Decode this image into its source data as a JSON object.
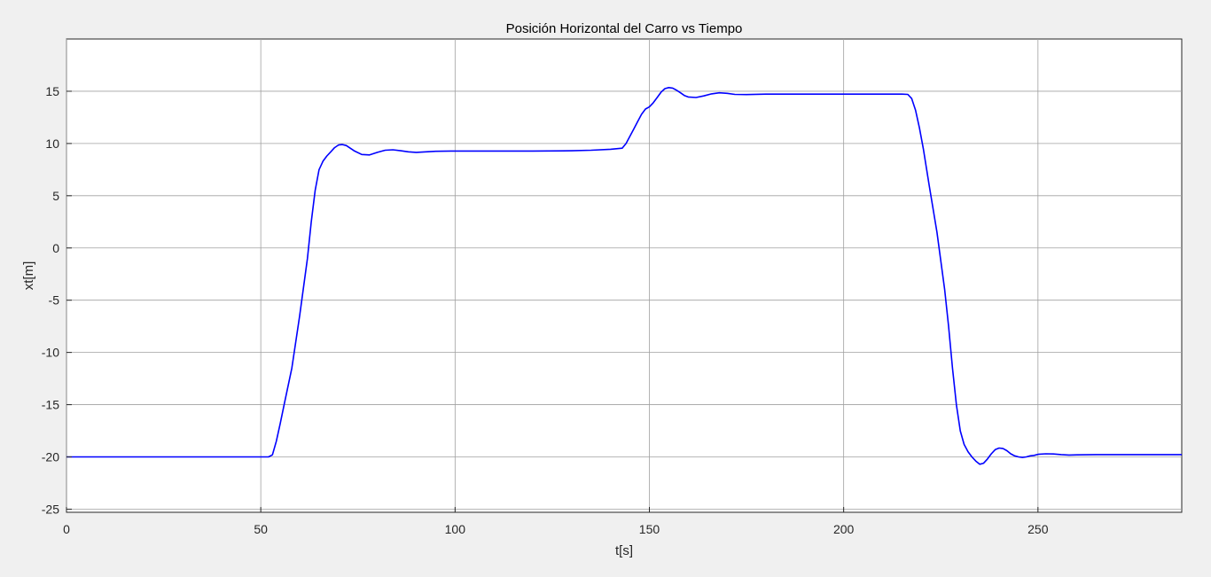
{
  "chart_data": {
    "type": "line",
    "title": "Posición Horizontal del Carro vs Tiempo",
    "xlabel": "t[s]",
    "ylabel": "xt[m]",
    "xlim": [
      0,
      287
    ],
    "ylim": [
      -25.3,
      20
    ],
    "x_ticks": [
      0,
      50,
      100,
      150,
      200,
      250
    ],
    "y_ticks": [
      15,
      10,
      5,
      0,
      -5,
      -10,
      -15,
      -20,
      -25
    ],
    "x_tick_labels": [
      "0",
      "50",
      "100",
      "150",
      "200",
      "250"
    ],
    "y_tick_labels": [
      "15",
      "10",
      "5",
      "0",
      "-5",
      "-10",
      "-15",
      "-20",
      "-25"
    ],
    "grid": true,
    "line_color": "#0000ff",
    "series": [
      {
        "x": [
          0,
          50,
          52,
          53,
          54,
          55,
          56,
          58,
          60,
          62,
          63,
          64,
          65,
          66,
          67,
          68,
          69,
          70,
          71,
          72,
          74,
          76,
          78,
          80,
          82,
          84,
          86,
          88,
          90,
          95,
          100,
          110,
          120,
          130,
          135,
          140,
          143,
          144,
          145,
          146,
          147,
          148,
          149,
          150,
          151,
          152,
          153,
          154,
          155,
          156,
          157,
          158,
          159,
          160,
          162,
          164,
          166,
          168,
          170,
          172,
          175,
          180,
          190,
          200,
          210,
          215,
          216.5,
          217.5,
          218.5,
          219.5,
          220.5,
          222,
          224,
          226,
          227,
          228,
          229,
          230,
          231,
          232,
          233,
          234,
          235,
          236,
          237,
          238,
          239,
          240,
          241,
          242,
          243,
          244,
          245,
          246,
          247,
          248,
          249,
          250,
          252,
          254,
          256,
          258,
          260,
          265,
          270,
          280,
          287
        ],
        "y": [
          -20,
          -20,
          -20,
          -19.8,
          -18.5,
          -16.8,
          -15.0,
          -11.5,
          -6.5,
          -1.0,
          2.5,
          5.5,
          7.5,
          8.3,
          8.8,
          9.2,
          9.6,
          9.85,
          9.9,
          9.8,
          9.3,
          8.95,
          8.9,
          9.15,
          9.35,
          9.4,
          9.3,
          9.2,
          9.15,
          9.25,
          9.28,
          9.28,
          9.28,
          9.3,
          9.35,
          9.45,
          9.55,
          10.0,
          10.7,
          11.4,
          12.1,
          12.8,
          13.3,
          13.5,
          13.9,
          14.4,
          14.9,
          15.25,
          15.35,
          15.3,
          15.1,
          14.85,
          14.6,
          14.45,
          14.4,
          14.55,
          14.75,
          14.85,
          14.8,
          14.7,
          14.68,
          14.72,
          14.72,
          14.72,
          14.72,
          14.72,
          14.7,
          14.3,
          13.2,
          11.5,
          9.5,
          6.0,
          1.5,
          -4.0,
          -7.5,
          -11.5,
          -15.0,
          -17.5,
          -18.8,
          -19.5,
          -20.0,
          -20.4,
          -20.7,
          -20.6,
          -20.2,
          -19.7,
          -19.3,
          -19.15,
          -19.2,
          -19.4,
          -19.7,
          -19.9,
          -20.0,
          -20.05,
          -20.0,
          -19.9,
          -19.85,
          -19.75,
          -19.7,
          -19.72,
          -19.78,
          -19.82,
          -19.8,
          -19.78,
          -19.78,
          -19.78,
          -19.78
        ]
      }
    ]
  }
}
